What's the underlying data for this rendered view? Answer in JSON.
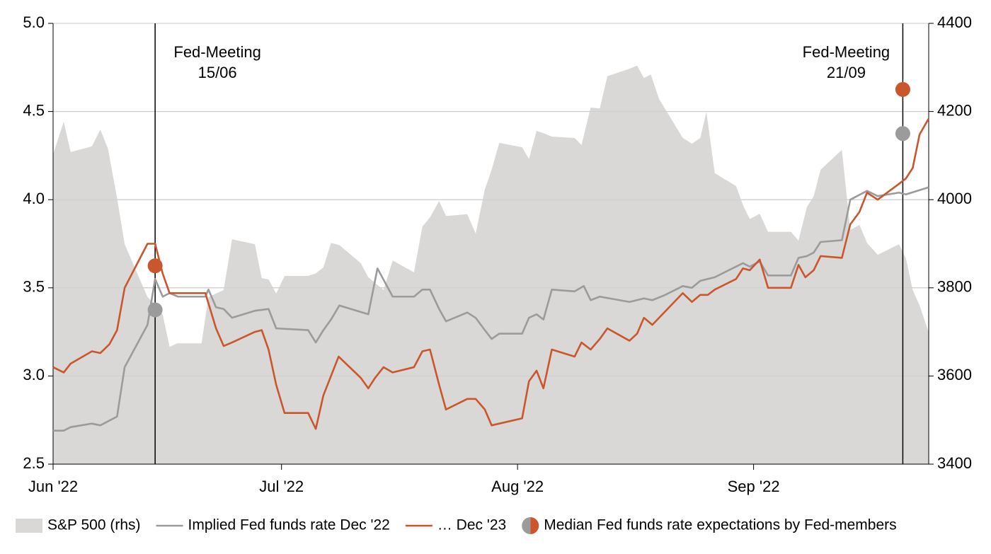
{
  "chart_data": {
    "type": "line",
    "xlim": [
      0,
      115
    ],
    "xticks": [
      {
        "value": 0,
        "label": "Jun '22"
      },
      {
        "value": 30,
        "label": "Jul '22"
      },
      {
        "value": 61,
        "label": "Aug '22"
      },
      {
        "value": 92,
        "label": "Sep '22"
      }
    ],
    "ylim": [
      2.5,
      5
    ],
    "yticks": [
      2.5,
      {
        "value": 3,
        "label": "3.0"
      },
      3.5,
      {
        "value": 4,
        "label": "4.0"
      },
      4.5,
      {
        "value": 5,
        "label": "5.0"
      }
    ],
    "y2lim": [
      3400,
      4400
    ],
    "y2ticks": [
      3400,
      3600,
      3800,
      4000,
      4200,
      4400
    ],
    "grid": true,
    "legend": "bottom",
    "series": [
      {
        "name": "S&P 500 (rhs)",
        "type": "area",
        "axis": "y2",
        "color": "#d9d8d7",
        "x": [
          0,
          1.4,
          2.3,
          5.1,
          6.2,
          7.2,
          8.4,
          9.4,
          11.4,
          12.4,
          13.4,
          14.4,
          15.3,
          16.3,
          19.5,
          20.4,
          22.4,
          23.5,
          26.5,
          27.4,
          28.3,
          29.3,
          30.4,
          33.5,
          34.5,
          35.5,
          36.5,
          37.6,
          40.4,
          41.4,
          42.3,
          43.4,
          44.6,
          47.4,
          48.5,
          49.5,
          50.7,
          51.6,
          54.4,
          55.5,
          56.7,
          57.6,
          58.6,
          61.6,
          62.5,
          63.5,
          64.4,
          65.5,
          68.5,
          69.4,
          70.6,
          71.8,
          72.8,
          75.7,
          76.7,
          77.6,
          78.5,
          79.6,
          82.7,
          83.9,
          85.0,
          85.8,
          86.9,
          89.7,
          90.6,
          91.5,
          92.8,
          93.9,
          96.9,
          97.9,
          99.0,
          99.9,
          100.8,
          103.6,
          104.7,
          105.9,
          106.9,
          108.3,
          111.1,
          112.0,
          112.9,
          113.8,
          115.0
        ],
        "values": [
          4103,
          4177,
          4108,
          4121,
          4159,
          4116,
          4004,
          3899,
          3819,
          3779,
          3763,
          3739,
          3666,
          3674,
          3674,
          3779,
          3795,
          3910,
          3899,
          3822,
          3819,
          3787,
          3827,
          3827,
          3833,
          3846,
          3902,
          3897,
          3856,
          3824,
          3811,
          3795,
          3862,
          3835,
          3939,
          3960,
          3997,
          3963,
          3967,
          3923,
          4023,
          4068,
          4129,
          4119,
          4092,
          4156,
          4151,
          4143,
          4140,
          4124,
          4209,
          4207,
          4280,
          4297,
          4304,
          4276,
          4284,
          4228,
          4140,
          4127,
          4140,
          4199,
          4060,
          4031,
          3988,
          3956,
          3968,
          3927,
          3927,
          3907,
          3983,
          4008,
          4068,
          4113,
          3931,
          3943,
          3902,
          3875,
          3899,
          3867,
          3795,
          3760,
          3699
        ]
      },
      {
        "name": "Implied Fed funds rate Dec '22",
        "type": "line",
        "color": "#9b9b9b",
        "x": [
          0,
          1.4,
          2.3,
          5.1,
          6.2,
          8.4,
          9.4,
          12.4,
          13.4,
          14.4,
          15.3,
          16.4,
          20.0,
          20.4,
          21.4,
          22.4,
          23.5,
          26.5,
          28.3,
          29.3,
          33.5,
          34.5,
          35.5,
          36.5,
          37.6,
          41.4,
          42.6,
          44.6,
          47.4,
          48.5,
          49.5,
          50.7,
          51.6,
          54.4,
          55.5,
          56.7,
          57.6,
          58.6,
          61.6,
          62.5,
          63.5,
          64.4,
          65.5,
          68.5,
          69.7,
          70.6,
          71.8,
          75.7,
          77.6,
          78.7,
          80.4,
          82.7,
          83.9,
          85.0,
          86.9,
          90.6,
          91.5,
          92.8,
          93.9,
          96.9,
          97.9,
          99.0,
          99.9,
          100.8,
          103.6,
          104.7,
          106.9,
          108.3,
          111.1,
          112.0,
          115.0
        ],
        "values": [
          2.69,
          2.69,
          2.71,
          2.73,
          2.72,
          2.77,
          3.05,
          3.29,
          3.55,
          3.45,
          3.47,
          3.45,
          3.45,
          3.49,
          3.39,
          3.38,
          3.33,
          3.37,
          3.38,
          3.27,
          3.26,
          3.19,
          3.26,
          3.32,
          3.4,
          3.35,
          3.61,
          3.45,
          3.45,
          3.49,
          3.49,
          3.38,
          3.31,
          3.36,
          3.33,
          3.26,
          3.21,
          3.24,
          3.24,
          3.33,
          3.35,
          3.32,
          3.49,
          3.48,
          3.51,
          3.43,
          3.45,
          3.42,
          3.44,
          3.43,
          3.46,
          3.51,
          3.5,
          3.54,
          3.56,
          3.64,
          3.62,
          3.65,
          3.57,
          3.57,
          3.67,
          3.68,
          3.7,
          3.76,
          3.77,
          4.0,
          4.05,
          4.02,
          4.04,
          4.03,
          4.07
        ]
      },
      {
        "name": "… Dec '23",
        "type": "line",
        "color": "#c9562c",
        "x": [
          0,
          1.4,
          2.3,
          5.1,
          6.2,
          7.4,
          8.4,
          9.4,
          12.4,
          13.4,
          14.4,
          15.3,
          20.0,
          21.4,
          22.4,
          23.5,
          26.5,
          27.4,
          28.3,
          29.3,
          30.4,
          33.5,
          34.5,
          35.5,
          37.5,
          40.4,
          41.4,
          42.3,
          43.4,
          44.6,
          47.4,
          48.5,
          49.5,
          50.7,
          51.6,
          54.4,
          55.5,
          56.7,
          57.6,
          58.6,
          61.6,
          62.5,
          63.5,
          64.4,
          65.5,
          68.5,
          69.4,
          70.6,
          71.8,
          72.8,
          75.7,
          76.7,
          77.6,
          78.7,
          82.7,
          83.9,
          85.0,
          86.0,
          86.9,
          89.7,
          90.6,
          91.5,
          92.8,
          93.9,
          96.9,
          97.9,
          98.8,
          99.9,
          100.8,
          103.6,
          104.7,
          105.9,
          106.9,
          108.3,
          111.1,
          112.0,
          112.9,
          113.8,
          115.0
        ],
        "values": [
          3.05,
          3.02,
          3.07,
          3.14,
          3.13,
          3.18,
          3.26,
          3.5,
          3.75,
          3.75,
          3.58,
          3.47,
          3.47,
          3.27,
          3.17,
          3.19,
          3.25,
          3.26,
          3.15,
          2.95,
          2.79,
          2.79,
          2.7,
          2.89,
          3.11,
          2.99,
          2.93,
          2.99,
          3.05,
          3.02,
          3.05,
          3.14,
          3.15,
          2.95,
          2.81,
          2.87,
          2.87,
          2.81,
          2.72,
          2.73,
          2.76,
          2.97,
          3.03,
          2.93,
          3.15,
          3.11,
          3.19,
          3.15,
          3.21,
          3.27,
          3.2,
          3.24,
          3.33,
          3.29,
          3.47,
          3.42,
          3.46,
          3.46,
          3.49,
          3.55,
          3.61,
          3.6,
          3.66,
          3.5,
          3.5,
          3.63,
          3.56,
          3.6,
          3.68,
          3.67,
          3.86,
          3.93,
          4.04,
          4.0,
          4.09,
          4.12,
          4.18,
          4.37,
          4.46
        ]
      }
    ],
    "markers": {
      "name": "Median Fed funds rate expectations by Fed-members",
      "colors": [
        "#9b9b9b",
        "#c9562c"
      ],
      "x": [
        13.4,
        111.6
      ],
      "dec22": [
        3.375,
        4.375
      ],
      "dec23": [
        3.625,
        4.625
      ]
    },
    "events": [
      {
        "x": 13.4,
        "label": [
          "Fed-Meeting",
          "15/06"
        ]
      },
      {
        "x": 111.6,
        "label": [
          "Fed-Meeting",
          "21/09"
        ]
      }
    ]
  }
}
